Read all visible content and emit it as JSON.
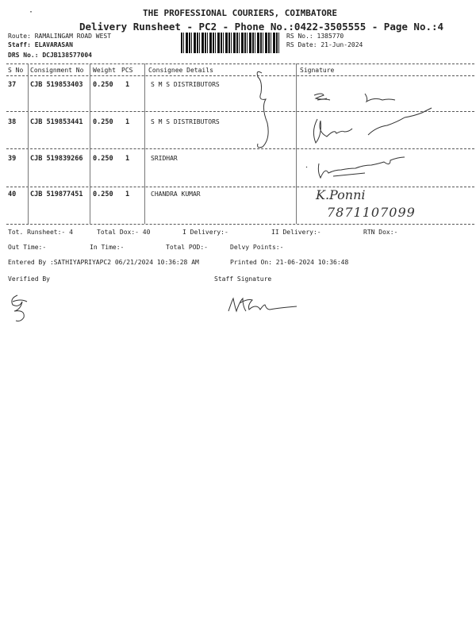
{
  "header": {
    "company": "THE PROFESSIONAL COURIERS, COIMBATORE",
    "subtitle": "Delivery Runsheet - PC2 - Phone No.:0422-3505555 - Page No.:4",
    "route": "Route: RAMALINGAM ROAD WEST",
    "staff": "Staff: ELAVARASAN",
    "drs_no": "DRS No.: DCJB138577004",
    "rs_no": "RS No.: 1385770",
    "rs_date": "RS Date: 21-Jun-2024"
  },
  "table": {
    "columns": [
      "S No",
      "Consignment No",
      "Weight",
      "PCS",
      "Consignee Details",
      "Signature"
    ],
    "rows": [
      {
        "sno": "37",
        "consignment": "CJB 519853403",
        "weight": "0.250",
        "pcs": "1",
        "consignee": "S M S DISTRIBUTORS"
      },
      {
        "sno": "38",
        "consignment": "CJB 519853441",
        "weight": "0.250",
        "pcs": "1",
        "consignee": "S M S DISTRIBUTORS"
      },
      {
        "sno": "39",
        "consignment": "CJB 519839266",
        "weight": "0.250",
        "pcs": "1",
        "consignee": "SRIDHAR"
      },
      {
        "sno": "40",
        "consignment": "CJB 519877451",
        "weight": "0.250",
        "pcs": "1",
        "consignee": "CHANDRA KUMAR"
      }
    ]
  },
  "handwriting": {
    "row40_name": "K.Ponni",
    "row40_phone": "7871107099"
  },
  "footer": {
    "tot_runsheet": "Tot. Runsheet:- 4",
    "total_dox": "Total Dox:-   40",
    "i_delivery": "I Delivery:-",
    "ii_delivery": "II Delivery:-",
    "rtn_dox": "RTN Dox:-",
    "out_time": "Out Time:-",
    "in_time": "In Time:-",
    "total_pod": "Total POD:-",
    "delvy_points": "Delvy Points:-",
    "entered_by": "Entered By :SATHIYAPRIYAPC2 06/21/2024 10:36:28 AM",
    "printed_on": "Printed On: 21-06-2024 10:36:48",
    "verified_by": "Verified By",
    "staff_signature": "Staff Signature"
  }
}
